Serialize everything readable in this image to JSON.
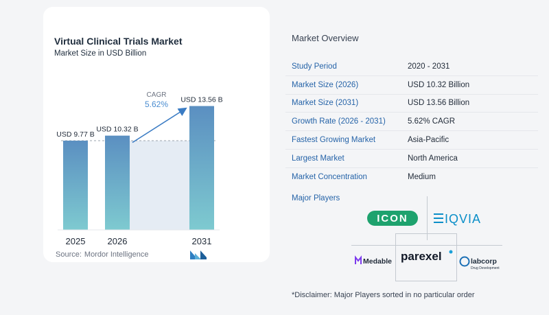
{
  "chart": {
    "title": "Virtual Clinical Trials Market",
    "subtitle": "Market Size in USD Billion",
    "cagr_label": "CAGR",
    "cagr_value": "5.62%",
    "source_label": "Source:",
    "source_name": "Mordor Intelligence",
    "colors": {
      "bar_top": "#5b8fc1",
      "bar_bottom": "#7ecad0",
      "shade": "#e5ecf4",
      "arrow": "#3b7cc4",
      "cagr_text": "#4a8cd0"
    }
  },
  "chart_data": {
    "type": "bar",
    "title": "Virtual Clinical Trials Market",
    "subtitle": "Market Size in USD Billion",
    "categories": [
      "2025",
      "2026",
      "2031"
    ],
    "values": [
      9.77,
      10.32,
      13.56
    ],
    "data_labels": [
      "USD 9.77 B",
      "USD 10.32 B",
      "USD 13.56 B"
    ],
    "annotation": {
      "label": "CAGR",
      "value": "5.62%"
    },
    "ylim": [
      0,
      14.5
    ],
    "grid": false,
    "legend": "none"
  },
  "overview": {
    "title": "Market Overview",
    "rows": [
      {
        "label": "Study Period",
        "value": "2020 - 2031"
      },
      {
        "label": "Market Size (2026)",
        "value": "USD 10.32 Billion"
      },
      {
        "label": "Market Size (2031)",
        "value": "USD 13.56 Billion"
      },
      {
        "label": "Growth Rate (2026 - 2031)",
        "value": "5.62% CAGR"
      },
      {
        "label": "Fastest Growing Market",
        "value": "Asia-Pacific"
      },
      {
        "label": "Largest Market",
        "value": "North America"
      },
      {
        "label": "Market Concentration",
        "value": "Medium"
      }
    ]
  },
  "players": {
    "title": "Major Players",
    "logos": {
      "icon": {
        "text": "ICON",
        "color": "#1ea26e"
      },
      "iqvia": {
        "text": "IQVIA",
        "color": "#0a8ec8"
      },
      "medable": {
        "text": "Medable",
        "color": "#1f2937",
        "accent": "#7c3aed"
      },
      "parexel": {
        "text": "parexel",
        "dot_color": "#1aa0d8",
        "color": "#111827"
      },
      "labcorp": {
        "text": "labcorp",
        "tagline": "Drug Development",
        "color": "#1f2d3d",
        "accent": "#1a6fb5"
      }
    }
  },
  "disclaimer": "*Disclaimer: Major Players sorted in no particular order"
}
